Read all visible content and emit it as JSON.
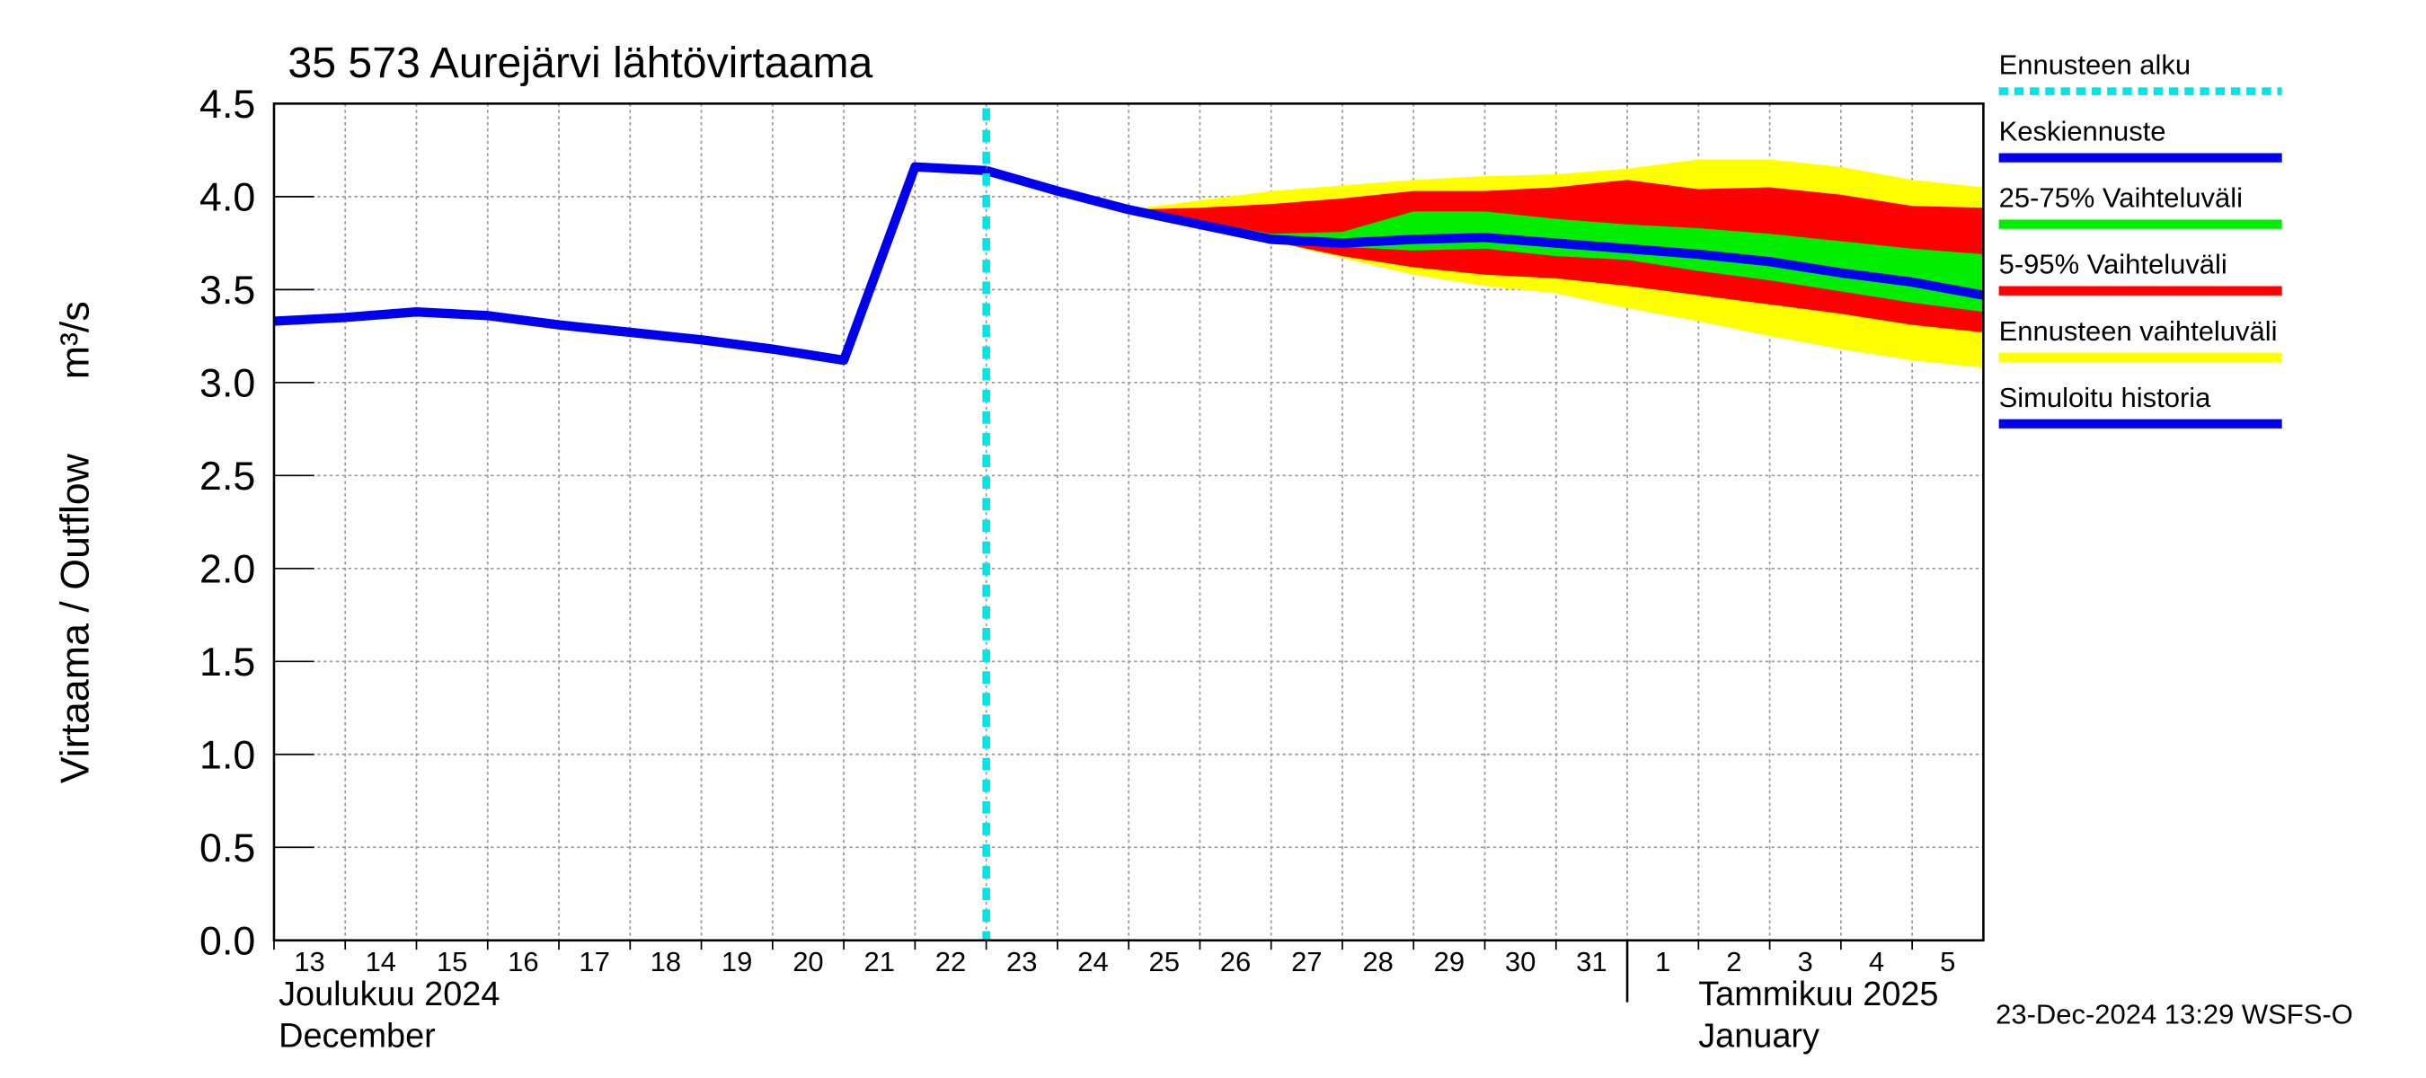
{
  "chart_data": {
    "type": "line",
    "title": "35 573 Aurejärvi lähtövirtaama",
    "y_label": "Virtaama / Outflow",
    "y_unit": "m³/s",
    "footer": "23-Dec-2024 13:29 WSFS-O",
    "xlim": [
      "2024-12-13",
      "2025-01-06"
    ],
    "ylim": [
      0,
      4.5
    ],
    "yticks": [
      {
        "value": 0,
        "label": "0.0"
      },
      0.5,
      {
        "value": 1,
        "label": "1.0"
      },
      1.5,
      {
        "value": 2,
        "label": "2.0"
      },
      2.5,
      {
        "value": 3,
        "label": "3.0"
      },
      3.5,
      {
        "value": 4,
        "label": "4.0"
      },
      4.5
    ],
    "xticks": [
      {
        "value": "2024-12-13",
        "label": "13"
      },
      {
        "value": "2024-12-14",
        "label": "14"
      },
      {
        "value": "2024-12-15",
        "label": "15"
      },
      {
        "value": "2024-12-16",
        "label": "16"
      },
      {
        "value": "2024-12-17",
        "label": "17"
      },
      {
        "value": "2024-12-18",
        "label": "18"
      },
      {
        "value": "2024-12-19",
        "label": "19"
      },
      {
        "value": "2024-12-20",
        "label": "20"
      },
      {
        "value": "2024-12-21",
        "label": "21"
      },
      {
        "value": "2024-12-22",
        "label": "22"
      },
      {
        "value": "2024-12-23",
        "label": "23"
      },
      {
        "value": "2024-12-24",
        "label": "24"
      },
      {
        "value": "2024-12-25",
        "label": "25"
      },
      {
        "value": "2024-12-26",
        "label": "26"
      },
      {
        "value": "2024-12-27",
        "label": "27"
      },
      {
        "value": "2024-12-28",
        "label": "28"
      },
      {
        "value": "2024-12-29",
        "label": "29"
      },
      {
        "value": "2024-12-30",
        "label": "30"
      },
      {
        "value": "2024-12-31",
        "label": "31"
      },
      {
        "value": "2025-01-01",
        "label": "1"
      },
      {
        "value": "2025-01-02",
        "label": "2"
      },
      {
        "value": "2025-01-03",
        "label": "3"
      },
      {
        "value": "2025-01-04",
        "label": "4"
      },
      {
        "value": "2025-01-05",
        "label": "5"
      }
    ],
    "months": [
      {
        "start": "2024-12-13",
        "label": "Joulukuu  2024",
        "label_en": "December"
      },
      {
        "start": "2025-01-01",
        "label": "Tammikuu  2025",
        "label_en": "January"
      }
    ],
    "grid": true,
    "forecast_start": {
      "x": "2024-12-23",
      "name": "Ennusteen alku",
      "color": "#00e5e5"
    },
    "x": [
      "2024-12-13",
      "2024-12-14",
      "2024-12-15",
      "2024-12-16",
      "2024-12-17",
      "2024-12-18",
      "2024-12-19",
      "2024-12-20",
      "2024-12-21",
      "2024-12-22",
      "2024-12-23",
      "2024-12-24",
      "2024-12-25",
      "2024-12-26",
      "2024-12-27",
      "2024-12-28",
      "2024-12-29",
      "2024-12-30",
      "2024-12-31",
      "2025-01-01",
      "2025-01-02",
      "2025-01-03",
      "2025-01-04",
      "2025-01-05",
      "2025-01-06"
    ],
    "bands": [
      {
        "name": "Ennusteen vaihteluväli",
        "color": "#ffff00",
        "upper": [
          null,
          null,
          null,
          null,
          null,
          null,
          null,
          null,
          null,
          null,
          null,
          null,
          3.93,
          3.98,
          4.03,
          4.06,
          4.09,
          4.11,
          4.12,
          4.15,
          4.2,
          4.2,
          4.16,
          4.09,
          4.05
        ],
        "lower": [
          null,
          null,
          null,
          null,
          null,
          null,
          null,
          null,
          null,
          null,
          null,
          null,
          3.93,
          3.85,
          3.76,
          3.67,
          3.58,
          3.52,
          3.48,
          3.4,
          3.33,
          3.25,
          3.18,
          3.12,
          3.08
        ]
      },
      {
        "name": "5-95% Vaihteluväli",
        "color": "#ff0000",
        "upper": [
          null,
          null,
          null,
          null,
          null,
          null,
          null,
          null,
          null,
          null,
          null,
          null,
          3.93,
          3.94,
          3.96,
          3.99,
          4.03,
          4.03,
          4.05,
          4.09,
          4.04,
          4.05,
          4.01,
          3.95,
          3.94
        ],
        "lower": [
          null,
          null,
          null,
          null,
          null,
          null,
          null,
          null,
          null,
          null,
          null,
          null,
          3.93,
          3.85,
          3.76,
          3.68,
          3.62,
          3.58,
          3.56,
          3.52,
          3.47,
          3.42,
          3.37,
          3.31,
          3.27
        ]
      },
      {
        "name": "25-75% Vaihteluväli",
        "color": "#00ee00",
        "upper": [
          null,
          null,
          null,
          null,
          null,
          null,
          null,
          null,
          null,
          null,
          null,
          null,
          3.93,
          3.87,
          3.8,
          3.81,
          3.92,
          3.92,
          3.88,
          3.85,
          3.83,
          3.8,
          3.76,
          3.72,
          3.69
        ],
        "lower": [
          null,
          null,
          null,
          null,
          null,
          null,
          null,
          null,
          null,
          null,
          null,
          null,
          3.93,
          3.85,
          3.77,
          3.73,
          3.71,
          3.72,
          3.68,
          3.66,
          3.6,
          3.55,
          3.49,
          3.43,
          3.38
        ]
      }
    ],
    "series": [
      {
        "name": "Keskiennuste",
        "color": "#0000ee",
        "values": [
          null,
          null,
          null,
          null,
          null,
          null,
          null,
          null,
          null,
          null,
          4.14,
          4.03,
          3.93,
          3.85,
          3.77,
          3.75,
          3.77,
          3.78,
          3.75,
          3.72,
          3.69,
          3.65,
          3.59,
          3.54,
          3.47
        ]
      },
      {
        "name": "Simuloitu historia",
        "color": "#0000ee",
        "values": [
          3.33,
          3.35,
          3.38,
          3.36,
          3.31,
          3.27,
          3.23,
          3.18,
          3.12,
          4.16,
          4.14,
          null,
          null,
          null,
          null,
          null,
          null,
          null,
          null,
          null,
          null,
          null,
          null,
          null,
          null
        ]
      }
    ],
    "legend_order": [
      "forecast_start",
      "series.0",
      "bands.2",
      "bands.1",
      "bands.0",
      "series.1"
    ]
  }
}
